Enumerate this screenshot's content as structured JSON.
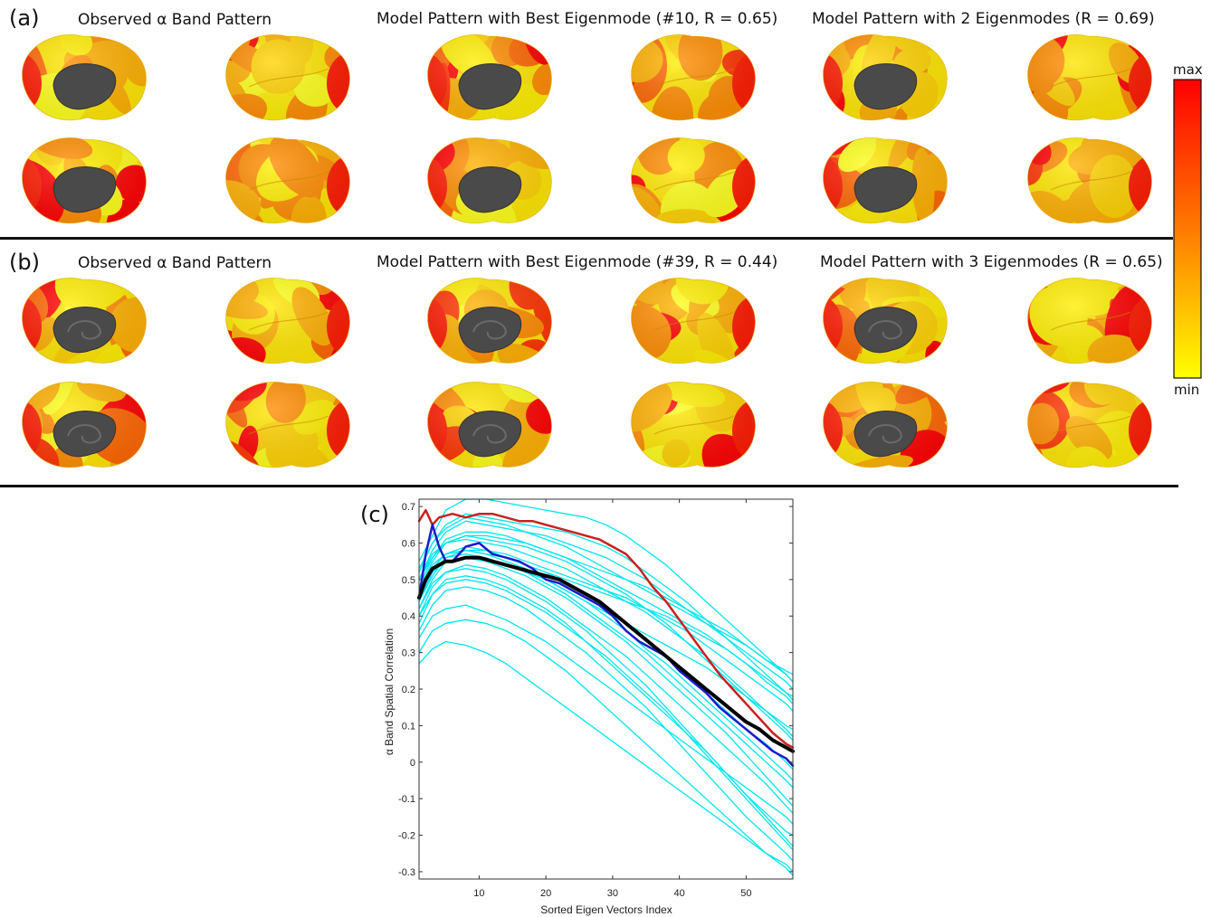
{
  "panels": [
    {
      "letter": "(a)",
      "titles": [
        "Observed α  Band Pattern",
        "Model Pattern with Best Eigenmode (#10,  R =  0.65)",
        "Model Pattern with 2 Eigenmodes (R =  0.69)"
      ]
    },
    {
      "letter": "(b)",
      "titles": [
        "Observed α  Band Pattern",
        "Model Pattern with Best Eigenmode (#39,  R =  0.44)",
        "Model Pattern with 3 Eigenmodes (R =  0.65)"
      ]
    }
  ],
  "colorbar": {
    "max_label": "max",
    "min_label": "min",
    "colors": [
      "#ff0000",
      "#ff7a00",
      "#ffff00"
    ]
  },
  "chart_data": {
    "panel_letter": "(c)",
    "type": "line",
    "xlabel": "Sorted Eigen Vectors Index",
    "ylabel": "α  Band Spatial Correlation",
    "xlim": [
      1,
      57
    ],
    "ylim": [
      -0.32,
      0.72
    ],
    "xticks": [
      10,
      20,
      30,
      40,
      50
    ],
    "yticks": [
      -0.3,
      -0.2,
      -0.1,
      0,
      0.1,
      0.2,
      0.3,
      0.4,
      0.5,
      0.6,
      0.7
    ],
    "ytick_labels": [
      "-0.3",
      "-0.2",
      "-0.1",
      "0",
      "0.1",
      "0.2",
      "0.3",
      "0.4",
      "0.5",
      "0.6",
      "0.7"
    ],
    "grid": false,
    "series_colors": {
      "subjects": "#00e5ee",
      "red": "#cc1f1f",
      "blue": "#1a1acc",
      "mean": "#000000"
    },
    "bold_series": [
      {
        "color": "#cc1f1f",
        "width": 2.5,
        "x": [
          1,
          2,
          3,
          4,
          6,
          8,
          10,
          12,
          14,
          16,
          18,
          20,
          22,
          24,
          26,
          28,
          30,
          32,
          34,
          36,
          38,
          40,
          42,
          44,
          46,
          48,
          50,
          52,
          54,
          56,
          57
        ],
        "y": [
          0.66,
          0.69,
          0.65,
          0.67,
          0.68,
          0.67,
          0.68,
          0.68,
          0.67,
          0.66,
          0.66,
          0.65,
          0.64,
          0.63,
          0.62,
          0.61,
          0.59,
          0.57,
          0.53,
          0.48,
          0.44,
          0.39,
          0.34,
          0.29,
          0.24,
          0.2,
          0.16,
          0.12,
          0.08,
          0.05,
          0.04
        ]
      },
      {
        "color": "#1a1acc",
        "width": 2.5,
        "x": [
          1,
          2,
          3,
          4,
          5,
          6,
          7,
          8,
          10,
          12,
          14,
          16,
          18,
          20,
          22,
          24,
          26,
          28,
          30,
          32,
          34,
          36,
          38,
          40,
          42,
          44,
          46,
          48,
          50,
          52,
          54,
          56,
          57
        ],
        "y": [
          0.45,
          0.57,
          0.65,
          0.59,
          0.55,
          0.55,
          0.57,
          0.59,
          0.6,
          0.57,
          0.56,
          0.55,
          0.53,
          0.5,
          0.49,
          0.47,
          0.45,
          0.43,
          0.4,
          0.36,
          0.33,
          0.31,
          0.29,
          0.25,
          0.22,
          0.19,
          0.15,
          0.12,
          0.09,
          0.06,
          0.03,
          0.01,
          -0.01
        ]
      },
      {
        "color": "#000000",
        "width": 4,
        "x": [
          1,
          2,
          3,
          4,
          5,
          6,
          8,
          10,
          12,
          14,
          16,
          18,
          20,
          22,
          24,
          26,
          28,
          30,
          32,
          34,
          36,
          38,
          40,
          42,
          44,
          46,
          48,
          50,
          52,
          54,
          56,
          57
        ],
        "y": [
          0.45,
          0.5,
          0.53,
          0.54,
          0.55,
          0.55,
          0.56,
          0.56,
          0.55,
          0.54,
          0.53,
          0.52,
          0.51,
          0.5,
          0.48,
          0.46,
          0.44,
          0.41,
          0.38,
          0.35,
          0.32,
          0.29,
          0.26,
          0.23,
          0.2,
          0.17,
          0.14,
          0.11,
          0.09,
          0.06,
          0.04,
          0.03
        ]
      }
    ],
    "subject_series_x": [
      1,
      3,
      5,
      8,
      11,
      14,
      17,
      20,
      23,
      26,
      29,
      32,
      35,
      38,
      41,
      44,
      47,
      50,
      53,
      56,
      57
    ],
    "subject_series_y": [
      [
        0.55,
        0.62,
        0.69,
        0.72,
        0.72,
        0.71,
        0.7,
        0.69,
        0.68,
        0.67,
        0.65,
        0.62,
        0.58,
        0.54,
        0.49,
        0.44,
        0.39,
        0.34,
        0.29,
        0.24,
        0.22
      ],
      [
        0.53,
        0.6,
        0.65,
        0.68,
        0.67,
        0.66,
        0.65,
        0.64,
        0.63,
        0.61,
        0.59,
        0.56,
        0.52,
        0.48,
        0.44,
        0.39,
        0.34,
        0.29,
        0.24,
        0.19,
        0.17
      ],
      [
        0.5,
        0.58,
        0.63,
        0.66,
        0.65,
        0.64,
        0.63,
        0.62,
        0.6,
        0.58,
        0.56,
        0.53,
        0.5,
        0.46,
        0.42,
        0.38,
        0.34,
        0.3,
        0.26,
        0.22,
        0.2
      ],
      [
        0.52,
        0.6,
        0.64,
        0.67,
        0.66,
        0.65,
        0.63,
        0.61,
        0.59,
        0.56,
        0.53,
        0.5,
        0.47,
        0.44,
        0.41,
        0.38,
        0.35,
        0.32,
        0.28,
        0.25,
        0.24
      ],
      [
        0.48,
        0.56,
        0.61,
        0.63,
        0.63,
        0.62,
        0.6,
        0.58,
        0.56,
        0.53,
        0.5,
        0.47,
        0.44,
        0.41,
        0.38,
        0.35,
        0.31,
        0.27,
        0.22,
        0.18,
        0.16
      ],
      [
        0.5,
        0.56,
        0.6,
        0.62,
        0.61,
        0.6,
        0.59,
        0.57,
        0.55,
        0.52,
        0.49,
        0.46,
        0.42,
        0.38,
        0.33,
        0.28,
        0.23,
        0.18,
        0.13,
        0.08,
        0.06
      ],
      [
        0.47,
        0.55,
        0.6,
        0.61,
        0.6,
        0.59,
        0.57,
        0.55,
        0.53,
        0.5,
        0.47,
        0.44,
        0.41,
        0.37,
        0.33,
        0.29,
        0.24,
        0.19,
        0.14,
        0.09,
        0.07
      ],
      [
        0.45,
        0.53,
        0.57,
        0.59,
        0.58,
        0.56,
        0.54,
        0.52,
        0.49,
        0.46,
        0.42,
        0.38,
        0.34,
        0.29,
        0.24,
        0.19,
        0.14,
        0.09,
        0.05,
        0.0,
        -0.02
      ],
      [
        0.44,
        0.52,
        0.56,
        0.58,
        0.57,
        0.55,
        0.53,
        0.5,
        0.47,
        0.44,
        0.4,
        0.36,
        0.31,
        0.27,
        0.22,
        0.17,
        0.12,
        0.07,
        0.02,
        -0.03,
        -0.05
      ],
      [
        0.48,
        0.54,
        0.57,
        0.58,
        0.57,
        0.56,
        0.54,
        0.52,
        0.5,
        0.48,
        0.46,
        0.44,
        0.42,
        0.4,
        0.37,
        0.34,
        0.31,
        0.27,
        0.23,
        0.19,
        0.18
      ],
      [
        0.42,
        0.5,
        0.55,
        0.56,
        0.55,
        0.54,
        0.52,
        0.49,
        0.46,
        0.42,
        0.38,
        0.34,
        0.3,
        0.25,
        0.2,
        0.15,
        0.1,
        0.05,
        0.0,
        -0.05,
        -0.07
      ],
      [
        0.46,
        0.52,
        0.55,
        0.56,
        0.55,
        0.53,
        0.51,
        0.48,
        0.45,
        0.41,
        0.37,
        0.33,
        0.28,
        0.23,
        0.18,
        0.13,
        0.08,
        0.02,
        -0.04,
        -0.1,
        -0.12
      ],
      [
        0.4,
        0.48,
        0.52,
        0.54,
        0.53,
        0.51,
        0.48,
        0.45,
        0.41,
        0.37,
        0.33,
        0.29,
        0.24,
        0.19,
        0.14,
        0.09,
        0.04,
        -0.01,
        -0.06,
        -0.12,
        -0.14
      ],
      [
        0.42,
        0.49,
        0.52,
        0.53,
        0.52,
        0.5,
        0.47,
        0.44,
        0.4,
        0.36,
        0.31,
        0.26,
        0.21,
        0.15,
        0.09,
        0.03,
        -0.03,
        -0.09,
        -0.14,
        -0.19,
        -0.2
      ],
      [
        0.38,
        0.46,
        0.5,
        0.51,
        0.5,
        0.48,
        0.45,
        0.42,
        0.38,
        0.33,
        0.28,
        0.23,
        0.18,
        0.13,
        0.08,
        0.03,
        -0.03,
        -0.09,
        -0.15,
        -0.21,
        -0.23
      ],
      [
        0.4,
        0.46,
        0.49,
        0.5,
        0.49,
        0.47,
        0.44,
        0.41,
        0.37,
        0.33,
        0.29,
        0.24,
        0.19,
        0.14,
        0.08,
        0.02,
        -0.04,
        -0.1,
        -0.16,
        -0.22,
        -0.24
      ],
      [
        0.36,
        0.43,
        0.47,
        0.48,
        0.47,
        0.45,
        0.42,
        0.38,
        0.34,
        0.3,
        0.25,
        0.2,
        0.15,
        0.09,
        0.03,
        -0.03,
        -0.09,
        -0.15,
        -0.2,
        -0.25,
        -0.27
      ],
      [
        0.44,
        0.51,
        0.56,
        0.57,
        0.56,
        0.54,
        0.52,
        0.5,
        0.47,
        0.44,
        0.41,
        0.38,
        0.35,
        0.32,
        0.29,
        0.26,
        0.22,
        0.18,
        0.14,
        0.1,
        0.09
      ],
      [
        0.5,
        0.57,
        0.6,
        0.62,
        0.62,
        0.61,
        0.6,
        0.58,
        0.56,
        0.54,
        0.52,
        0.5,
        0.48,
        0.45,
        0.42,
        0.39,
        0.36,
        0.32,
        0.28,
        0.24,
        0.22
      ],
      [
        0.46,
        0.53,
        0.57,
        0.58,
        0.58,
        0.57,
        0.55,
        0.53,
        0.51,
        0.49,
        0.47,
        0.45,
        0.42,
        0.39,
        0.36,
        0.32,
        0.28,
        0.24,
        0.2,
        0.16,
        0.14
      ],
      [
        0.3,
        0.36,
        0.38,
        0.39,
        0.38,
        0.36,
        0.33,
        0.29,
        0.25,
        0.2,
        0.15,
        0.1,
        0.05,
        0.0,
        -0.05,
        -0.1,
        -0.15,
        -0.2,
        -0.25,
        -0.29,
        -0.31
      ],
      [
        0.27,
        0.31,
        0.33,
        0.32,
        0.3,
        0.27,
        0.23,
        0.19,
        0.15,
        0.11,
        0.07,
        0.03,
        -0.01,
        -0.05,
        -0.09,
        -0.13,
        -0.17,
        -0.21,
        -0.25,
        -0.28,
        -0.3
      ],
      [
        0.34,
        0.4,
        0.42,
        0.43,
        0.41,
        0.39,
        0.36,
        0.33,
        0.29,
        0.25,
        0.21,
        0.17,
        0.13,
        0.09,
        0.05,
        0.01,
        -0.03,
        -0.07,
        -0.11,
        -0.15,
        -0.17
      ]
    ]
  }
}
